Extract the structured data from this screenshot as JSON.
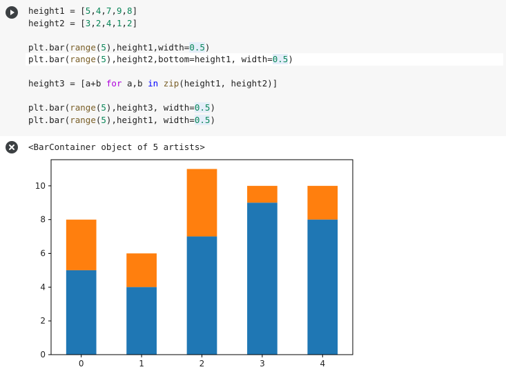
{
  "code_cell": {
    "run_icon": "play-icon",
    "lines": [
      "height1 = [5,4,7,9,8]",
      "height2 = [3,2,4,1,2]",
      "",
      "plt.bar(range(5),height1,width=0.5)",
      "plt.bar(range(5),height2,bottom=height1, width=0.5)",
      "",
      "height3 = [a+b for a,b in zip(height1, height2)]",
      "",
      "plt.bar(range(5),height3, width=0.5)",
      "plt.bar(range(5),height1, width=0.5)"
    ]
  },
  "output": {
    "clear_icon": "close-icon",
    "text": "<BarContainer object of 5 artists>"
  },
  "chart_data": {
    "type": "bar",
    "stacked": true,
    "categories": [
      "0",
      "1",
      "2",
      "3",
      "4"
    ],
    "series": [
      {
        "name": "height1",
        "values": [
          5,
          4,
          7,
          9,
          8
        ],
        "color": "#1f77b4"
      },
      {
        "name": "height2",
        "values": [
          3,
          2,
          4,
          1,
          2
        ],
        "color": "#ff7f0e"
      }
    ],
    "totals": [
      8,
      6,
      11,
      10,
      10
    ],
    "yticks": [
      "0",
      "2",
      "4",
      "6",
      "8",
      "10"
    ],
    "ylim": [
      0,
      11.55
    ],
    "title": "",
    "xlabel": "",
    "ylabel": ""
  }
}
